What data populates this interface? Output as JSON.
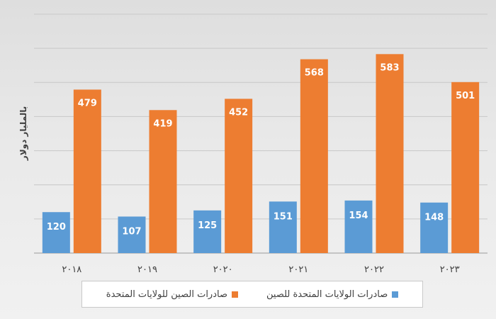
{
  "chart_data": {
    "type": "bar",
    "categories": [
      "٢٠١٨",
      "٢٠١٩",
      "٢٠٢٠",
      "٢٠٢١",
      "٢٠٢٢",
      "٢٠٢٣"
    ],
    "series": [
      {
        "name": "صادرات الولايات المتحدة للصين",
        "color": "#5b9bd5",
        "values": [
          120,
          107,
          125,
          151,
          154,
          148
        ]
      },
      {
        "name": "صادرات الصين للولايات المتحدة",
        "color": "#ed7d31",
        "values": [
          479,
          419,
          452,
          568,
          583,
          501
        ]
      }
    ],
    "ylabel": "بالمليار دولار",
    "ylim": [
      0,
      700
    ],
    "grid": true,
    "legend_position": "bottom"
  }
}
